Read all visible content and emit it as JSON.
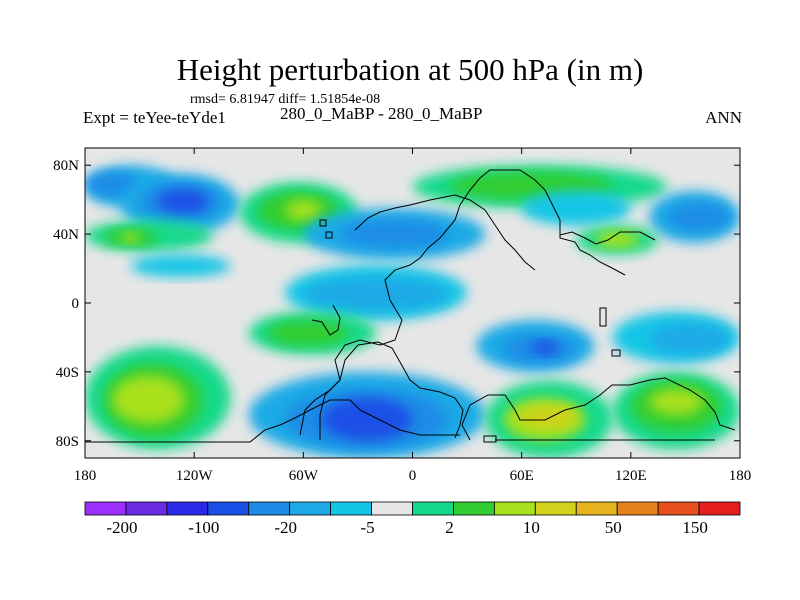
{
  "title": "Height perturbation at 500 hPa (in m)",
  "stats_text": "rmsd= 6.81947 diff= 1.51854e-08",
  "subtitle": "280_0_MaBP - 280_0_MaBP",
  "left_label": "Expt = teYee-teYde1",
  "right_label": "ANN",
  "chart_data": {
    "type": "heatmap",
    "title": "Height perturbation at 500 hPa (in m)",
    "xlabel": "",
    "ylabel": "",
    "xlim": [
      -180,
      180
    ],
    "ylim": [
      -90,
      90
    ],
    "x_ticks": [
      {
        "value": -180,
        "label": "180"
      },
      {
        "value": -120,
        "label": "120W"
      },
      {
        "value": -60,
        "label": "60W"
      },
      {
        "value": 0,
        "label": "0"
      },
      {
        "value": 60,
        "label": "60E"
      },
      {
        "value": 120,
        "label": "120E"
      },
      {
        "value": 180,
        "label": "180"
      }
    ],
    "y_ticks": [
      {
        "value": 80,
        "label": "80N"
      },
      {
        "value": 40,
        "label": "40N"
      },
      {
        "value": 0,
        "label": "0"
      },
      {
        "value": -40,
        "label": "40S"
      },
      {
        "value": -80,
        "label": "80S"
      }
    ],
    "background_level_color": "#e6e6e6",
    "colorbar": {
      "colors": [
        "#9b30ff",
        "#6a2be2",
        "#2a2ae6",
        "#1a50e6",
        "#1e8ce6",
        "#1eaae6",
        "#12c6e6",
        "#e6e6e6",
        "#14d98c",
        "#32cd32",
        "#a8e01e",
        "#d2d21e",
        "#e6b41e",
        "#e6821e",
        "#e6501e",
        "#e61e1e"
      ],
      "labels": [
        {
          "boundary": 1,
          "text": "-200"
        },
        {
          "boundary": 3,
          "text": "-100"
        },
        {
          "boundary": 5,
          "text": "-20"
        },
        {
          "boundary": 7,
          "text": "-5"
        },
        {
          "boundary": 9,
          "text": "2"
        },
        {
          "boundary": 11,
          "text": "10"
        },
        {
          "boundary": 13,
          "text": "50"
        },
        {
          "boundary": 15,
          "text": "150"
        }
      ]
    },
    "regions": [
      {
        "name": "np-west-positive",
        "lon": [
          -180,
          -130
        ],
        "lat": [
          55,
          80
        ],
        "color": "#1eaae6"
      },
      {
        "name": "np-west-positive-core",
        "lon": [
          -180,
          -150
        ],
        "lat": [
          62,
          76
        ],
        "color": "#1e8ce6"
      },
      {
        "name": "north-pacific-low",
        "lon": [
          -160,
          -95
        ],
        "lat": [
          40,
          75
        ],
        "color": "#1eaae6"
      },
      {
        "name": "north-pacific-low-mid",
        "lon": [
          -150,
          -105
        ],
        "lat": [
          48,
          70
        ],
        "color": "#1e8ce6"
      },
      {
        "name": "north-pacific-low-core",
        "lon": [
          -140,
          -112
        ],
        "lat": [
          52,
          66
        ],
        "color": "#1a50e6"
      },
      {
        "name": "np-green-band",
        "lon": [
          -180,
          -110
        ],
        "lat": [
          30,
          48
        ],
        "color": "#14d98c"
      },
      {
        "name": "np-green-band-inner",
        "lon": [
          -170,
          -140
        ],
        "lat": [
          33,
          43
        ],
        "color": "#32cd32"
      },
      {
        "name": "np-green-band-core",
        "lon": [
          -160,
          -150
        ],
        "lat": [
          35,
          41
        ],
        "color": "#a8e01e"
      },
      {
        "name": "np-cyan-strip",
        "lon": [
          -155,
          -100
        ],
        "lat": [
          15,
          28
        ],
        "color": "#12c6e6"
      },
      {
        "name": "na-high",
        "lon": [
          -95,
          -30
        ],
        "lat": [
          35,
          70
        ],
        "color": "#14d98c"
      },
      {
        "name": "na-high-inner",
        "lon": [
          -85,
          -40
        ],
        "lat": [
          42,
          65
        ],
        "color": "#32cd32"
      },
      {
        "name": "na-high-core",
        "lon": [
          -70,
          -50
        ],
        "lat": [
          48,
          60
        ],
        "color": "#a8e01e"
      },
      {
        "name": "atlantic-cyan",
        "lon": [
          -60,
          40
        ],
        "lat": [
          25,
          55
        ],
        "color": "#1eaae6"
      },
      {
        "name": "atlantic-blue",
        "lon": [
          -40,
          20
        ],
        "lat": [
          32,
          48
        ],
        "color": "#1e8ce6"
      },
      {
        "name": "eurasia-high",
        "lon": [
          0,
          140
        ],
        "lat": [
          55,
          80
        ],
        "color": "#14d98c"
      },
      {
        "name": "eurasia-high-inner",
        "lon": [
          20,
          110
        ],
        "lat": [
          60,
          76
        ],
        "color": "#32cd32"
      },
      {
        "name": "siberia-cyan",
        "lon": [
          60,
          120
        ],
        "lat": [
          45,
          65
        ],
        "color": "#12c6e6"
      },
      {
        "name": "npac-east-blue",
        "lon": [
          130,
          180
        ],
        "lat": [
          35,
          65
        ],
        "color": "#1eaae6"
      },
      {
        "name": "npac-east-blue-core",
        "lon": [
          140,
          175
        ],
        "lat": [
          42,
          58
        ],
        "color": "#1e8ce6"
      },
      {
        "name": "asia-green",
        "lon": [
          90,
          135
        ],
        "lat": [
          28,
          45
        ],
        "color": "#14d98c"
      },
      {
        "name": "asia-green-core",
        "lon": [
          100,
          125
        ],
        "lat": [
          32,
          42
        ],
        "color": "#a8e01e"
      },
      {
        "name": "tropical-cyan",
        "lon": [
          -70,
          30
        ],
        "lat": [
          -10,
          22
        ],
        "color": "#12c6e6"
      },
      {
        "name": "tropical-cyan-core",
        "lon": [
          -60,
          20
        ],
        "lat": [
          -5,
          15
        ],
        "color": "#1eaae6"
      },
      {
        "name": "sh-pacific-high",
        "lon": [
          -180,
          -100
        ],
        "lat": [
          -85,
          -25
        ],
        "color": "#14d98c"
      },
      {
        "name": "sh-pacific-high-inner",
        "lon": [
          -170,
          -115
        ],
        "lat": [
          -78,
          -35
        ],
        "color": "#32cd32"
      },
      {
        "name": "sh-pacific-high-core",
        "lon": [
          -165,
          -125
        ],
        "lat": [
          -70,
          -42
        ],
        "color": "#a8e01e"
      },
      {
        "name": "sh-mid-green",
        "lon": [
          -90,
          -20
        ],
        "lat": [
          -30,
          -5
        ],
        "color": "#14d98c"
      },
      {
        "name": "sh-mid-green-core",
        "lon": [
          -80,
          -35
        ],
        "lat": [
          -25,
          -10
        ],
        "color": "#32cd32"
      },
      {
        "name": "sh-atlantic-low",
        "lon": [
          -90,
          40
        ],
        "lat": [
          -90,
          -40
        ],
        "color": "#1eaae6"
      },
      {
        "name": "sh-atlantic-low-mid",
        "lon": [
          -70,
          20
        ],
        "lat": [
          -85,
          -50
        ],
        "color": "#1e8ce6"
      },
      {
        "name": "sh-atlantic-low-core",
        "lon": [
          -50,
          0
        ],
        "lat": [
          -80,
          -55
        ],
        "color": "#1a50e6"
      },
      {
        "name": "indian-low",
        "lon": [
          35,
          100
        ],
        "lat": [
          -40,
          -10
        ],
        "color": "#1eaae6"
      },
      {
        "name": "indian-low-core",
        "lon": [
          50,
          90
        ],
        "lat": [
          -35,
          -18
        ],
        "color": "#1e8ce6"
      },
      {
        "name": "indian-low-deep",
        "lon": [
          65,
          80
        ],
        "lat": [
          -30,
          -22
        ],
        "color": "#1a50e6"
      },
      {
        "name": "sh-indian-high",
        "lon": [
          40,
          110
        ],
        "lat": [
          -90,
          -45
        ],
        "color": "#14d98c"
      },
      {
        "name": "sh-indian-high-inner",
        "lon": [
          50,
          95
        ],
        "lat": [
          -80,
          -55
        ],
        "color": "#a8e01e"
      },
      {
        "name": "sh-indian-high-core",
        "lon": [
          60,
          90
        ],
        "lat": [
          -72,
          -60
        ],
        "color": "#d2d21e"
      },
      {
        "name": "aus-high",
        "lon": [
          110,
          180
        ],
        "lat": [
          -85,
          -40
        ],
        "color": "#14d98c"
      },
      {
        "name": "aus-high-inner",
        "lon": [
          120,
          170
        ],
        "lat": [
          -75,
          -45
        ],
        "color": "#32cd32"
      },
      {
        "name": "aus-high-core",
        "lon": [
          130,
          160
        ],
        "lat": [
          -65,
          -50
        ],
        "color": "#a8e01e"
      },
      {
        "name": "aus-cyan",
        "lon": [
          110,
          180
        ],
        "lat": [
          -35,
          -5
        ],
        "color": "#12c6e6"
      },
      {
        "name": "aus-cyan-core",
        "lon": [
          130,
          175
        ],
        "lat": [
          -30,
          -12
        ],
        "color": "#1eaae6"
      }
    ]
  }
}
